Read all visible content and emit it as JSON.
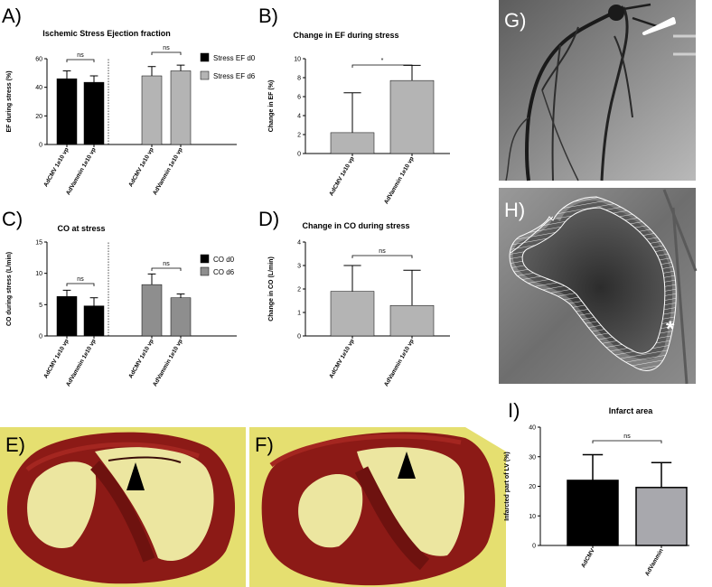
{
  "panels": {
    "A": "A)",
    "B": "B)",
    "C": "C)",
    "D": "D)",
    "E": "E)",
    "F": "F)",
    "G": "G)",
    "H": "H)",
    "I": "I)"
  },
  "colors": {
    "black": "#000000",
    "lightgray": "#b4b4b4",
    "midgray": "#8e8e8e",
    "barGray": "#b9b9b9",
    "iGray": "#a8a8ad",
    "yellow": "#e8e277",
    "tissue": "#8c1a16"
  },
  "chart_data": [
    {
      "id": "A",
      "type": "bar",
      "title": "Ischemic Stress Ejection fraction",
      "ylabel": "EF during stress (%)",
      "ylim": [
        0,
        60
      ],
      "yticks": [
        0,
        20,
        40,
        60
      ],
      "categories": [
        "AdCMV 1e10 vp",
        "AdVammin 1e10 vp",
        "AdCMV 1e10 vp",
        "AdVammin 1e10 vp"
      ],
      "series": [
        {
          "name": "Stress EF d0",
          "color": "#000000",
          "values": [
            46,
            43.5,
            null,
            null
          ],
          "err": [
            5.5,
            4.5,
            null,
            null
          ]
        },
        {
          "name": "Stress EF d6",
          "color": "#b4b4b4",
          "values": [
            null,
            null,
            48,
            51.5
          ],
          "err": [
            null,
            null,
            6.5,
            4
          ]
        }
      ],
      "annotations": [
        "ns",
        "ns"
      ],
      "legend": "right"
    },
    {
      "id": "B",
      "type": "bar",
      "title": "Change in EF during stress",
      "ylabel": "Change in EF (%)",
      "ylim": [
        0,
        10
      ],
      "yticks": [
        0,
        2,
        4,
        6,
        8,
        10
      ],
      "categories": [
        "AdCMV 1e10 vp",
        "AdVammin 1e10 vp"
      ],
      "values": [
        2.2,
        7.7
      ],
      "err": [
        4.2,
        1.6
      ],
      "color": "#b4b4b4",
      "annotations": [
        "*"
      ]
    },
    {
      "id": "C",
      "type": "bar",
      "title": "CO at stress",
      "ylabel": "CO during stress (L/min)",
      "ylim": [
        0,
        15
      ],
      "yticks": [
        0,
        5,
        10,
        15
      ],
      "categories": [
        "AdCMV 1e10 vp",
        "AdVammin 1e10 vp",
        "AdCMV 1e10 vp",
        "AdVammin 1e10 vp"
      ],
      "series": [
        {
          "name": "CO d0",
          "color": "#000000",
          "values": [
            6.3,
            4.8,
            null,
            null
          ],
          "err": [
            1.0,
            1.3,
            null,
            null
          ]
        },
        {
          "name": "CO d6",
          "color": "#8e8e8e",
          "values": [
            null,
            null,
            8.2,
            6.1
          ],
          "err": [
            null,
            null,
            1.7,
            0.6
          ]
        }
      ],
      "annotations": [
        "ns",
        "ns"
      ],
      "legend": "right"
    },
    {
      "id": "D",
      "type": "bar",
      "title": "Change in CO during stress",
      "ylabel": "Change in CO (L/min)",
      "ylim": [
        0,
        4
      ],
      "yticks": [
        0,
        1,
        2,
        3,
        4
      ],
      "categories": [
        "AdCMV 1e10 vp",
        "AdVammin 1e10 vp"
      ],
      "values": [
        1.9,
        1.3
      ],
      "err": [
        1.1,
        1.5
      ],
      "color": "#b4b4b4",
      "annotations": [
        "ns"
      ]
    },
    {
      "id": "I",
      "type": "bar",
      "title": "Infarct area",
      "ylabel": "Infarcted part of LV (%)",
      "ylim": [
        0,
        40
      ],
      "yticks": [
        0,
        10,
        20,
        30,
        40
      ],
      "categories": [
        "AdCMV",
        "AdVammin"
      ],
      "values": [
        22,
        19.6
      ],
      "err": [
        8.7,
        8.4
      ],
      "colors": [
        "#000000",
        "#a8a8ad"
      ],
      "annotations": [
        "ns"
      ]
    }
  ],
  "images": {
    "H_marker": "*"
  }
}
